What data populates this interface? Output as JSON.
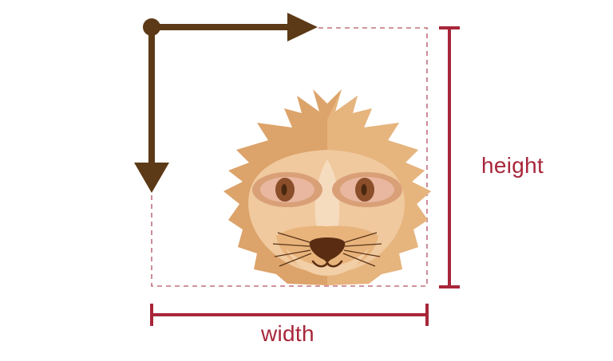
{
  "labels": {
    "height": "height",
    "width": "width"
  },
  "colors": {
    "measure": "#a8263a",
    "dashed_box": "#c0707e",
    "axis_arrow": "#5c3a17",
    "mane_outer": "#dca36a",
    "mane_light": "#e9b882",
    "face": "#f0c99e",
    "face_light": "#f6dcbf",
    "eye_patch": "#d9a078",
    "iris": "#8a4e2a",
    "pupil": "#4a2810",
    "nose": "#5a2d12",
    "whisker": "#5a3418"
  },
  "icons": {
    "subject": "meerkat-face-icon",
    "x_axis": "arrow-right-icon",
    "y_axis": "arrow-down-icon",
    "origin": "origin-dot-icon"
  }
}
